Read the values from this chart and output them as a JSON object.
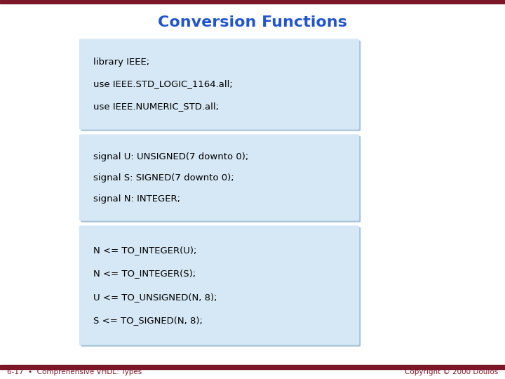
{
  "title": "Conversion Functions",
  "title_color": "#2255CC",
  "title_fontsize": 16,
  "bg_color": "#FFFFFF",
  "bar_color": "#7B1728",
  "box_bg_color": "#D6E8F5",
  "box_shadow_color": "#A8C4D8",
  "code_color": "#000000",
  "code_fontsize": 9.5,
  "footer_left": "6-17  •  Comprehensive VHDL: Types",
  "footer_right": "Copyright © 2000 Doulos",
  "footer_color": "#7B1728",
  "footer_fontsize": 7.5,
  "box1_lines": [
    "library IEEE;",
    "use IEEE.STD_LOGIC_1164.all;",
    "use IEEE.NUMERIC_STD.all;"
  ],
  "box2_lines": [
    "signal U: UNSIGNED(7 downto 0);",
    "signal S: SIGNED(7 downto 0);",
    "signal N: INTEGER;"
  ],
  "box3_lines": [
    "N <= TO_INTEGER(U);",
    "N <= TO_INTEGER(S);",
    "U <= TO_UNSIGNED(N, 8);",
    "S <= TO_SIGNED(N, 8);"
  ]
}
